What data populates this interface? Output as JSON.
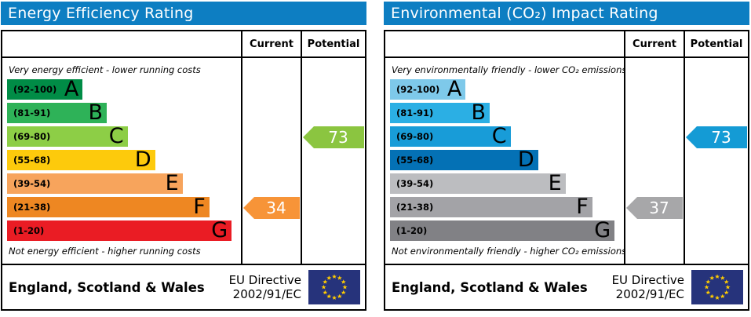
{
  "colors": {
    "header_bg": "#0d7ec2",
    "flag_bg": "#26337b",
    "star_yellow": "#ffcc00"
  },
  "panels": [
    {
      "title": "Energy Efficiency Rating",
      "columns": {
        "current": "Current",
        "potential": "Potential"
      },
      "top_note": "Very energy efficient - lower running costs",
      "bottom_note": "Not energy efficient - higher running costs",
      "bands": [
        {
          "range": "(92-100)",
          "letter": "A",
          "color": "#008c46",
          "width_pct": 33
        },
        {
          "range": "(81-91)",
          "letter": "B",
          "color": "#2eb258",
          "width_pct": 43.5
        },
        {
          "range": "(69-80)",
          "letter": "C",
          "color": "#8dce46",
          "width_pct": 52.6
        },
        {
          "range": "(55-68)",
          "letter": "D",
          "color": "#fdca0c",
          "width_pct": 64.6
        },
        {
          "range": "(39-54)",
          "letter": "E",
          "color": "#f7a45c",
          "width_pct": 76.6
        },
        {
          "range": "(21-38)",
          "letter": "F",
          "color": "#ee8722",
          "width_pct": 88.3
        },
        {
          "range": "(1-20)",
          "letter": "G",
          "color": "#ea1c24",
          "width_pct": 98
        }
      ],
      "current": {
        "value": "34",
        "band_index": 5,
        "color": "#f79438"
      },
      "potential": {
        "value": "73",
        "band_index": 2,
        "color": "#8bc540"
      },
      "footer": {
        "region": "England, Scotland & Wales",
        "directive_line1": "EU Directive",
        "directive_line2": "2002/91/EC"
      }
    },
    {
      "title": "Environmental (CO₂) Impact Rating",
      "columns": {
        "current": "Current",
        "potential": "Potential"
      },
      "top_note": "Very environmentally friendly - lower CO₂ emissions",
      "bottom_note": "Not environmentally friendly - higher CO₂ emissions",
      "bands": [
        {
          "range": "(92-100)",
          "letter": "A",
          "color": "#7ec9ea",
          "width_pct": 33
        },
        {
          "range": "(81-91)",
          "letter": "B",
          "color": "#2bafe4",
          "width_pct": 43.5
        },
        {
          "range": "(69-80)",
          "letter": "C",
          "color": "#189cd8",
          "width_pct": 52.6
        },
        {
          "range": "(55-68)",
          "letter": "D",
          "color": "#0471b5",
          "width_pct": 64.6
        },
        {
          "range": "(39-54)",
          "letter": "E",
          "color": "#bcbdc0",
          "width_pct": 76.6
        },
        {
          "range": "(21-38)",
          "letter": "F",
          "color": "#a3a3a7",
          "width_pct": 88.3
        },
        {
          "range": "(1-20)",
          "letter": "G",
          "color": "#818185",
          "width_pct": 98
        }
      ],
      "current": {
        "value": "37",
        "band_index": 5,
        "color": "#a7a7a9"
      },
      "potential": {
        "value": "73",
        "band_index": 2,
        "color": "#149bd5"
      },
      "footer": {
        "region": "England, Scotland & Wales",
        "directive_line1": "EU Directive",
        "directive_line2": "2002/91/EC"
      }
    }
  ],
  "chart_data": [
    {
      "type": "bar",
      "title": "Energy Efficiency Rating",
      "categories": [
        "A (92-100)",
        "B (81-91)",
        "C (69-80)",
        "D (55-68)",
        "E (39-54)",
        "F (21-38)",
        "G (1-20)"
      ],
      "values": [
        33,
        43.5,
        52.6,
        64.6,
        76.6,
        88.3,
        98
      ],
      "current_rating": 34,
      "current_band": "F",
      "potential_rating": 73,
      "potential_band": "C",
      "xlabel": "",
      "ylabel": "",
      "ylim": [
        1,
        100
      ],
      "annotations": [
        "Very energy efficient - lower running costs",
        "Not energy efficient - higher running costs",
        "England, Scotland & Wales",
        "EU Directive 2002/91/EC"
      ]
    },
    {
      "type": "bar",
      "title": "Environmental (CO₂) Impact Rating",
      "categories": [
        "A (92-100)",
        "B (81-91)",
        "C (69-80)",
        "D (55-68)",
        "E (39-54)",
        "F (21-38)",
        "G (1-20)"
      ],
      "values": [
        33,
        43.5,
        52.6,
        64.6,
        76.6,
        88.3,
        98
      ],
      "current_rating": 37,
      "current_band": "F",
      "potential_rating": 73,
      "potential_band": "C",
      "xlabel": "",
      "ylabel": "",
      "ylim": [
        1,
        100
      ],
      "annotations": [
        "Very environmentally friendly - lower CO₂ emissions",
        "Not environmentally friendly - higher CO₂ emissions",
        "England, Scotland & Wales",
        "EU Directive 2002/91/EC"
      ]
    }
  ]
}
